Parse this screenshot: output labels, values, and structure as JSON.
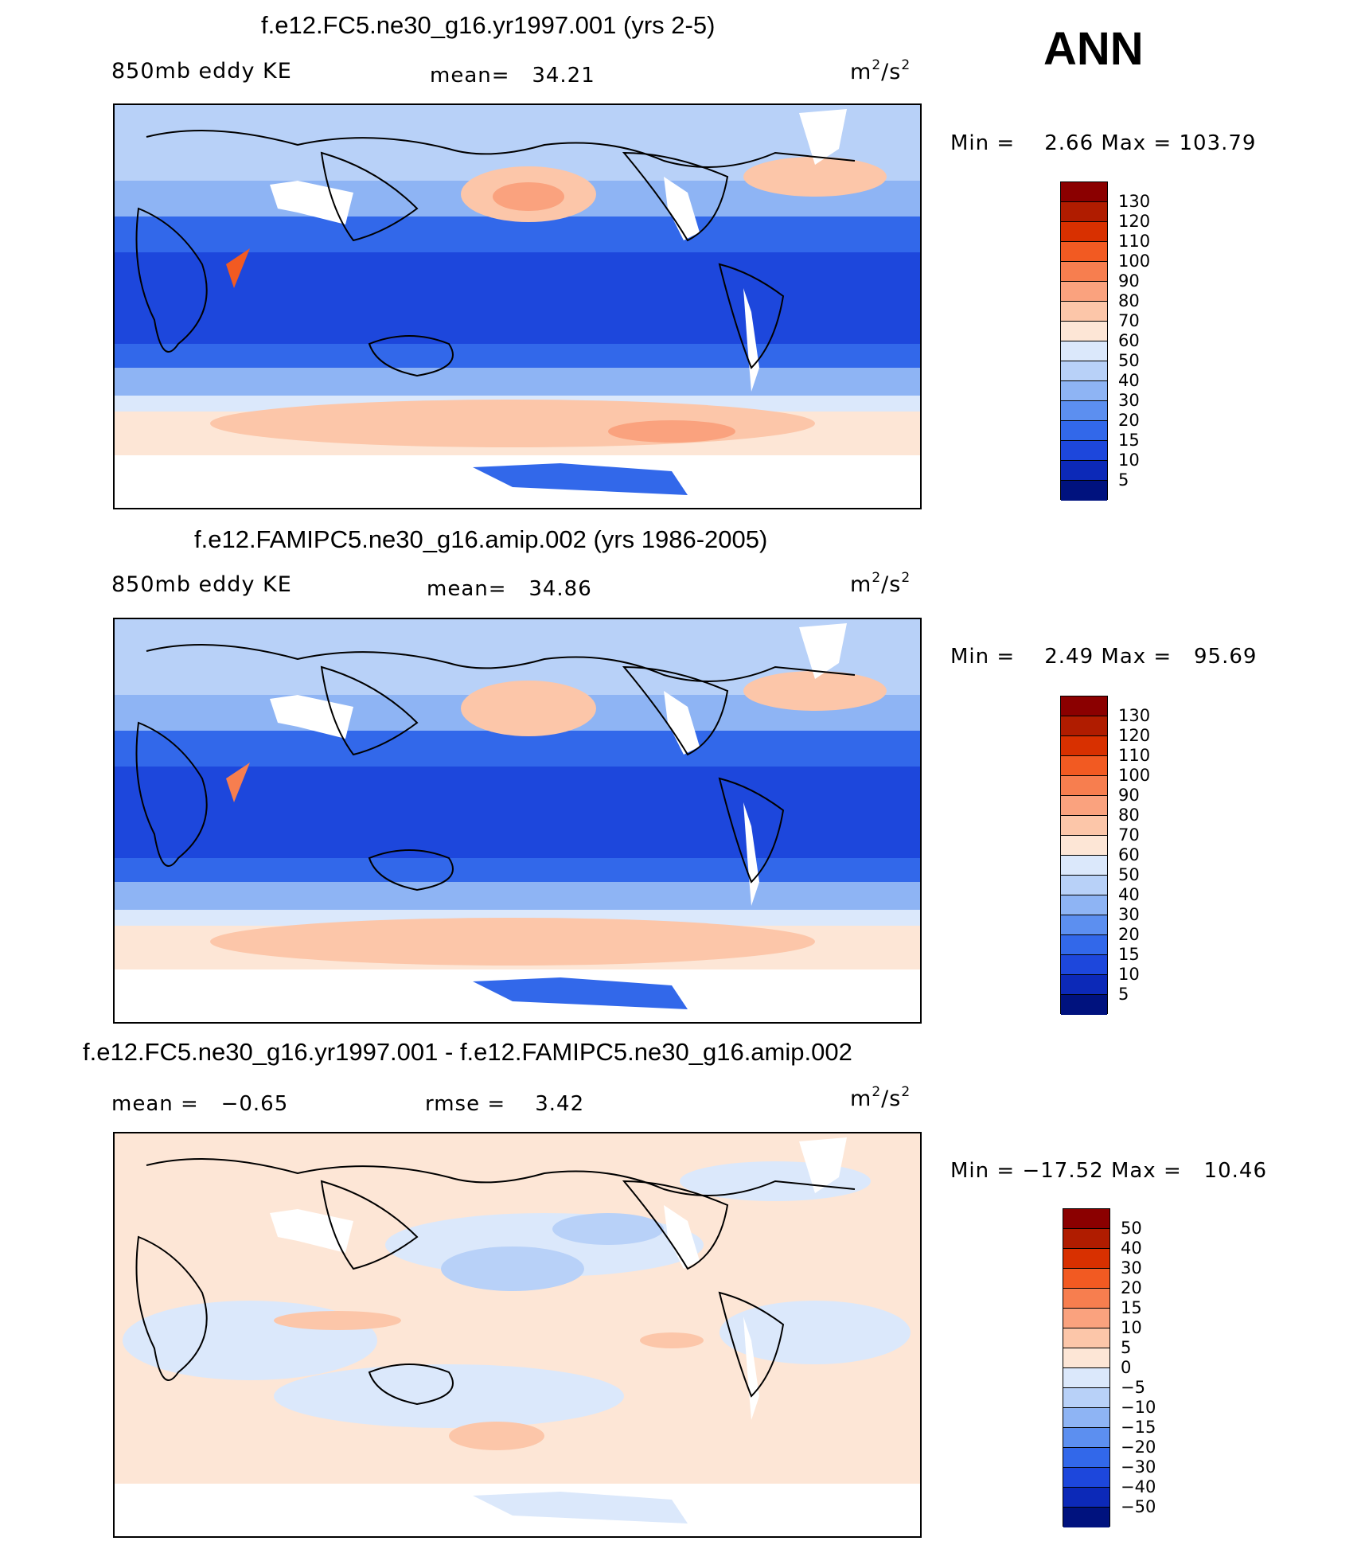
{
  "season": "ANN",
  "units_base": "m",
  "units_exp1": "2",
  "units_div": "/s",
  "units_exp2": "2",
  "panels": [
    {
      "title": "f.e12.FC5.ne30_g16.yr1997.001 (yrs 2-5)",
      "left_label": "850mb eddy KE",
      "stat1_label": "mean=",
      "stat1_value": "34.21",
      "min_label": "Min =",
      "min_value": "2.66",
      "max_label": "Max =",
      "max_value": "103.79"
    },
    {
      "title": "f.e12.FAMIPC5.ne30_g16.amip.002 (yrs 1986-2005)",
      "left_label": "850mb eddy KE",
      "stat1_label": "mean=",
      "stat1_value": "34.86",
      "min_label": "Min =",
      "min_value": "2.49",
      "max_label": "Max =",
      "max_value": "95.69"
    },
    {
      "title": "f.e12.FC5.ne30_g16.yr1997.001 - f.e12.FAMIPC5.ne30_g16.amip.002",
      "left_label": "mean =",
      "left_value": "−0.65",
      "stat1_label": "rmse =",
      "stat1_value": "3.42",
      "min_label": "Min =",
      "min_value": "−17.52",
      "max_label": "Max =",
      "max_value": "10.46"
    }
  ],
  "colorbar_field": {
    "labels": [
      "130",
      "120",
      "110",
      "100",
      "90",
      "80",
      "70",
      "60",
      "50",
      "40",
      "30",
      "20",
      "15",
      "10",
      "5"
    ],
    "colors": [
      "#8b0000",
      "#b01c00",
      "#d83000",
      "#f25a22",
      "#f77e4f",
      "#faa27e",
      "#fcc6a9",
      "#fde6d6",
      "#dbe8fb",
      "#b8d1f8",
      "#8eb4f4",
      "#5c8ff0",
      "#3268ea",
      "#1d47dc",
      "#0c29b8",
      "#00127e"
    ]
  },
  "colorbar_diff": {
    "labels": [
      "50",
      "40",
      "30",
      "20",
      "15",
      "10",
      "5",
      "0",
      "−5",
      "−10",
      "−15",
      "−20",
      "−30",
      "−40",
      "−50"
    ],
    "colors": [
      "#8b0000",
      "#b01c00",
      "#d83000",
      "#f25a22",
      "#f77e4f",
      "#faa27e",
      "#fcc6a9",
      "#fde6d6",
      "#dbe8fb",
      "#b8d1f8",
      "#8eb4f4",
      "#5c8ff0",
      "#3268ea",
      "#1d47dc",
      "#0c29b8",
      "#00127e"
    ]
  }
}
